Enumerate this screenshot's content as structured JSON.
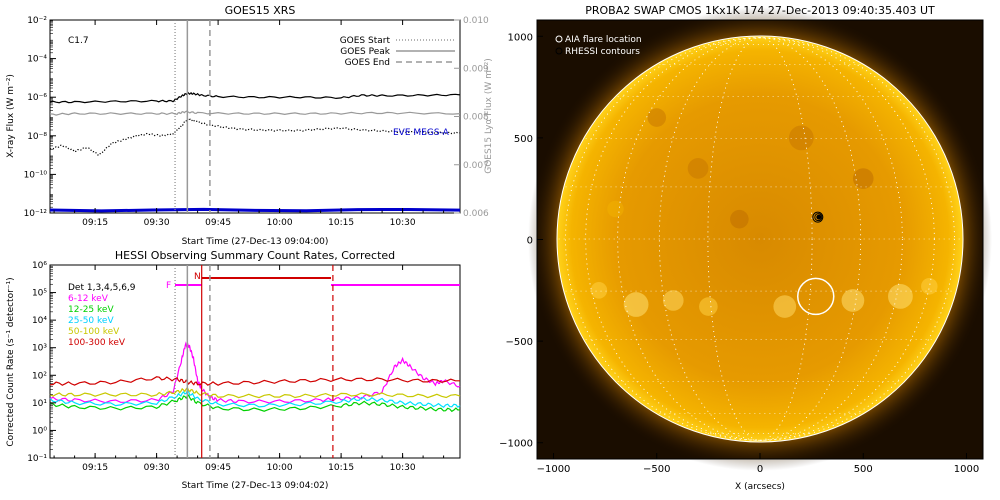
{
  "charts": {
    "goes": {
      "title": "GOES15 XRS",
      "annotation": "C1.7",
      "ylabel_left": "X-ray Flux (W m⁻²)",
      "ylabel_right": "GOES15 Lyα Flux (W m⁻²)",
      "xlabel": "Start Time (27-Dec-13 09:04:00)",
      "right_ticks": [
        "0.010",
        "0.009",
        "0.008",
        "0.007",
        "0.006"
      ],
      "legend": [
        {
          "label": "GOES Start",
          "style": "dotted"
        },
        {
          "label": "GOES Peak",
          "style": "solid"
        },
        {
          "label": "GOES End",
          "style": "dashed"
        }
      ],
      "eve_label": "EVE MEGS-A"
    },
    "hessi": {
      "title": "HESSI Observing Summary Count Rates, Corrected",
      "ylabel": "Corrected Count Rate (s⁻¹ detector⁻¹)",
      "xlabel": "Start Time (27-Dec-13 09:04:02)",
      "detectors": "Det 1,3,4,5,6,9",
      "flag_F": "F",
      "flag_N": "N",
      "legend": [
        {
          "label": "6-12 keV",
          "color": "#ff00ff"
        },
        {
          "label": "12-25 keV",
          "color": "#00d000"
        },
        {
          "label": "25-50 keV",
          "color": "#00e0ff"
        },
        {
          "label": "50-100 keV",
          "color": "#c8c800"
        },
        {
          "label": "100-300 keV",
          "color": "#d00000"
        }
      ]
    },
    "swap": {
      "title": "PROBA2 SWAP CMOS 1Kx1K 174 27-Dec-2013 09:40:35.403 UT",
      "xlabel": "X (arcsecs)",
      "legend": [
        "AIA flare location",
        "RHESSI contours"
      ]
    }
  },
  "chart_data": [
    {
      "type": "line",
      "name": "goes-xrs",
      "x_ticks": [
        "09:15",
        "09:30",
        "09:45",
        "10:00",
        "10:15",
        "10:30"
      ],
      "x_tick_minutes": [
        15,
        30,
        45,
        60,
        75,
        90
      ],
      "xlim_minutes": [
        4,
        104
      ],
      "y_scale": "log",
      "ylim": [
        1e-12,
        0.01
      ],
      "y_ticks": [
        "10⁻¹²",
        "10⁻¹⁰",
        "10⁻⁸",
        "10⁻⁶",
        "10⁻⁴",
        "10⁻²"
      ],
      "y_tick_values": [
        -12,
        -10,
        -8,
        -6,
        -4,
        -2
      ],
      "events_minutes": {
        "start": 34.5,
        "peak": 37.5,
        "end": 43.0
      },
      "series": [
        {
          "color": "#000000",
          "style": "solid",
          "x": [
            4,
            10,
            20,
            30,
            34,
            36,
            37.5,
            39,
            41,
            45,
            55,
            65,
            75,
            80,
            85,
            95,
            104
          ],
          "y": [
            -6.25,
            -6.25,
            -6.22,
            -6.2,
            -6.2,
            -5.95,
            -5.8,
            -5.82,
            -5.9,
            -5.97,
            -6.0,
            -6.0,
            -6.03,
            -5.9,
            -5.92,
            -5.9,
            -5.88
          ]
        },
        {
          "color": "#999999",
          "style": "solid",
          "x": [
            4,
            10,
            20,
            30,
            35,
            37,
            40,
            50,
            60,
            70,
            80,
            90,
            104
          ],
          "y": [
            -6.9,
            -6.85,
            -6.85,
            -6.85,
            -6.85,
            -6.75,
            -6.82,
            -6.85,
            -6.85,
            -6.85,
            -6.82,
            -6.82,
            -6.85
          ]
        },
        {
          "color": "#000000",
          "style": "dotted",
          "x": [
            4,
            7,
            10,
            13,
            16,
            19,
            22,
            25,
            28,
            31,
            34,
            36,
            37.5,
            39,
            42,
            46,
            50,
            55,
            60,
            65,
            70,
            75,
            80,
            85,
            90,
            95,
            100,
            104
          ],
          "y": [
            -8.7,
            -8.5,
            -8.8,
            -8.6,
            -9.0,
            -8.4,
            -8.2,
            -8.0,
            -7.9,
            -8.0,
            -7.9,
            -7.5,
            -7.15,
            -7.2,
            -7.4,
            -7.55,
            -7.65,
            -7.7,
            -7.72,
            -7.73,
            -7.65,
            -7.6,
            -7.7,
            -7.75,
            -7.8,
            -7.82,
            -7.85,
            -7.85
          ]
        },
        {
          "color": "#0000cc",
          "style": "solid",
          "width": 3,
          "x": [
            4,
            104
          ],
          "y": [
            -11.85,
            -11.85
          ]
        }
      ]
    },
    {
      "type": "line",
      "name": "hessi-count-rates",
      "x_ticks": [
        "09:15",
        "09:30",
        "09:45",
        "10:00",
        "10:15",
        "10:30"
      ],
      "x_tick_minutes": [
        15,
        30,
        45,
        60,
        75,
        90
      ],
      "xlim_minutes": [
        4,
        104
      ],
      "y_scale": "log",
      "ylim": [
        0.1,
        1000000.0
      ],
      "y_ticks": [
        "10⁻¹",
        "10⁰",
        "10¹",
        "10²",
        "10³",
        "10⁴",
        "10⁵",
        "10⁶"
      ],
      "y_tick_values": [
        -1,
        0,
        1,
        2,
        3,
        4,
        5,
        6
      ],
      "events_minutes": {
        "start": 34.5,
        "peak": 37.5,
        "hessi_peak": 41.0,
        "end": 43.0,
        "hessi_end": 73.0
      },
      "series": [
        {
          "name": "6-12 keV",
          "color": "#ff00ff",
          "x": [
            4,
            10,
            20,
            30,
            34,
            36,
            37,
            38,
            39,
            40,
            41,
            43,
            45,
            50,
            60,
            70,
            75,
            80,
            85,
            88,
            90,
            92,
            95,
            98,
            100,
            104
          ],
          "y": [
            1.15,
            1.1,
            1.05,
            1.1,
            1.4,
            2.5,
            3.1,
            3.05,
            2.6,
            1.8,
            1.5,
            1.2,
            1.1,
            1.05,
            1.05,
            1.1,
            1.15,
            1.2,
            1.4,
            2.3,
            2.55,
            2.3,
            1.9,
            1.7,
            1.8,
            1.6
          ]
        },
        {
          "name": "12-25 keV",
          "color": "#00d000",
          "x": [
            4,
            10,
            20,
            30,
            35,
            37.5,
            40,
            45,
            55,
            65,
            75,
            80,
            85,
            90,
            95,
            100,
            104
          ],
          "y": [
            0.95,
            0.85,
            0.8,
            0.85,
            1.1,
            1.25,
            1.0,
            0.8,
            0.75,
            0.8,
            0.9,
            1.0,
            0.95,
            0.85,
            0.8,
            0.75,
            0.75
          ]
        },
        {
          "name": "25-50 keV",
          "color": "#00e0ff",
          "x": [
            4,
            10,
            20,
            30,
            35,
            37.5,
            40,
            45,
            55,
            65,
            75,
            80,
            85,
            90,
            95,
            100,
            104
          ],
          "y": [
            1.1,
            1.0,
            0.95,
            1.0,
            1.25,
            1.4,
            1.15,
            0.95,
            0.9,
            0.95,
            1.05,
            1.15,
            1.1,
            1.0,
            0.95,
            0.9,
            0.9
          ]
        },
        {
          "name": "50-100 keV",
          "color": "#c8c800",
          "x": [
            4,
            10,
            20,
            30,
            35,
            37.5,
            40,
            45,
            55,
            65,
            75,
            85,
            95,
            104
          ],
          "y": [
            1.3,
            1.3,
            1.3,
            1.3,
            1.4,
            1.5,
            1.35,
            1.25,
            1.25,
            1.25,
            1.3,
            1.3,
            1.25,
            1.25
          ]
        },
        {
          "name": "100-300 keV",
          "color": "#d00000",
          "x": [
            4,
            10,
            20,
            30,
            35,
            37.5,
            40,
            45,
            55,
            65,
            75,
            85,
            95,
            104
          ],
          "y": [
            1.7,
            1.7,
            1.75,
            1.9,
            1.85,
            1.75,
            1.7,
            1.7,
            1.75,
            1.8,
            1.85,
            1.85,
            1.8,
            1.8
          ]
        }
      ]
    },
    {
      "type": "scatter",
      "name": "swap-solar-image",
      "x_ticks": [
        "−1000",
        "−500",
        "0",
        "500",
        "1000"
      ],
      "y_ticks": [
        "1000",
        "500",
        "0",
        "−500",
        "−1000"
      ],
      "tick_values": [
        -1000,
        -500,
        0,
        500,
        1000
      ],
      "xlim": [
        -1080,
        1080
      ],
      "ylim": [
        -1080,
        1080
      ],
      "solar_radius_arcsec": 975,
      "aia_flare_location": {
        "x": 270,
        "y": -280
      },
      "rhessi_contour_center": {
        "x": 280,
        "y": 110
      }
    }
  ]
}
